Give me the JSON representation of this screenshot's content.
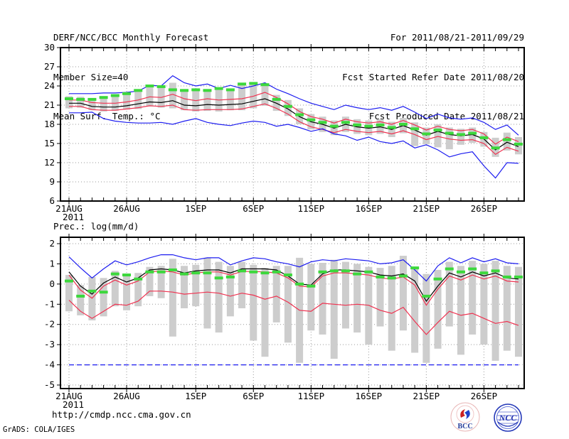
{
  "header": {
    "title": "DERF/NCC/BCC Monthly Forecast",
    "member_size": "Member Size=40",
    "temp_label": "Mean Surf. Temp.: °C",
    "for_range": "For 2011/08/21-2011/09/29",
    "fcst_started": "Fcst Started Refer Date 2011/08/20",
    "fcst_produced": "Fcst Produced Date 2011/08/21"
  },
  "footer": {
    "url": "http://cmdp.ncc.cma.gov.cn",
    "grads_credit": "GrADS: COLA/IGES",
    "logos": [
      {
        "name": "bcc-logo",
        "label": "BCC"
      },
      {
        "name": "ncc-logo",
        "label": "NCC"
      }
    ]
  },
  "colors": {
    "blue": "#1c1cf0",
    "red": "#ef3250",
    "green": "#3cd83c",
    "black": "#000000",
    "bar": "#cdcdcd",
    "grid": "#9a9a9a",
    "frame": "#000000"
  },
  "chart_data": [
    {
      "type": "line",
      "name": "temperature-chart",
      "title": "Mean Surf. Temp.: °C",
      "xlabel": "",
      "ylabel": "°C",
      "n_days": 40,
      "x_start": "21AUG2011",
      "x_end": "29SEP2011",
      "x_tick_labels": [
        "21AUG",
        "26AUG",
        "1SEP",
        "6SEP",
        "11SEP",
        "16SEP",
        "21SEP",
        "26SEP"
      ],
      "x_tick_days": [
        0,
        5,
        11,
        16,
        21,
        26,
        31,
        36
      ],
      "x_sub_label": "2011",
      "ylim": [
        6,
        30
      ],
      "yticks": [
        30,
        27,
        24,
        21,
        18,
        15,
        12,
        9,
        6
      ],
      "grid": "dotted",
      "legend": "none",
      "series": [
        {
          "name": "ensemble-max",
          "color_key": "blue",
          "style": "solid",
          "values": [
            22.8,
            22.8,
            22.8,
            22.9,
            22.9,
            23.0,
            23.2,
            24.1,
            24.0,
            25.6,
            24.5,
            24.0,
            24.3,
            23.6,
            24.1,
            23.6,
            24.0,
            24.5,
            23.5,
            22.8,
            22.0,
            21.3,
            20.8,
            20.3,
            21.0,
            20.6,
            20.3,
            20.6,
            20.2,
            20.8,
            19.9,
            18.9,
            19.6,
            19.0,
            18.8,
            19.0,
            18.3,
            17.2,
            17.9,
            16.3
          ]
        },
        {
          "name": "mean-plus-std",
          "color_key": "red",
          "style": "solid",
          "values": [
            21.8,
            21.8,
            21.4,
            21.3,
            21.3,
            21.5,
            21.8,
            22.3,
            22.2,
            22.7,
            22.0,
            21.7,
            22.0,
            21.8,
            21.9,
            22.0,
            22.4,
            23.0,
            22.2,
            21.2,
            20.0,
            19.2,
            18.8,
            18.2,
            18.8,
            18.4,
            18.2,
            18.4,
            18.0,
            18.6,
            17.9,
            17.1,
            17.7,
            17.2,
            17.0,
            17.2,
            16.5,
            14.9,
            16.0,
            15.3
          ]
        },
        {
          "name": "mean-minus-std",
          "color_key": "red",
          "style": "solid",
          "values": [
            20.8,
            20.8,
            20.3,
            20.2,
            20.2,
            20.4,
            20.6,
            20.9,
            20.8,
            21.0,
            20.3,
            20.2,
            20.3,
            20.3,
            20.3,
            20.4,
            20.8,
            21.2,
            20.5,
            19.6,
            18.4,
            17.6,
            17.2,
            16.7,
            17.2,
            16.9,
            16.7,
            16.9,
            16.5,
            17.0,
            16.4,
            15.6,
            16.1,
            15.7,
            15.5,
            15.6,
            15.0,
            13.3,
            14.4,
            13.8
          ]
        },
        {
          "name": "ensemble-mean",
          "color_key": "black",
          "style": "solid",
          "values": [
            21.3,
            21.3,
            20.8,
            20.7,
            20.7,
            20.9,
            21.2,
            21.5,
            21.4,
            21.7,
            21.0,
            20.9,
            21.1,
            21.0,
            21.1,
            21.2,
            21.6,
            22.0,
            21.3,
            20.4,
            19.2,
            18.4,
            18.0,
            17.4,
            18.0,
            17.6,
            17.4,
            17.6,
            17.2,
            17.8,
            17.1,
            16.3,
            16.9,
            16.4,
            16.2,
            16.4,
            15.7,
            14.0,
            15.2,
            14.5
          ]
        },
        {
          "name": "ensemble-min",
          "color_key": "blue",
          "style": "solid",
          "values": [
            19.8,
            19.8,
            19.9,
            18.9,
            18.5,
            18.3,
            18.2,
            18.2,
            18.3,
            18.0,
            18.5,
            18.9,
            18.3,
            18.0,
            17.8,
            18.2,
            18.5,
            18.3,
            17.7,
            18.0,
            17.5,
            16.9,
            17.3,
            16.5,
            16.2,
            15.5,
            16.0,
            15.3,
            15.0,
            15.4,
            14.3,
            14.8,
            14.0,
            12.9,
            13.4,
            13.7,
            11.5,
            9.6,
            12.0,
            11.9
          ]
        },
        {
          "name": "observation-dash",
          "color_key": "green",
          "style": "thick-dash",
          "values": [
            22.0,
            21.9,
            21.9,
            22.2,
            22.5,
            22.8,
            23.3,
            24.0,
            23.9,
            23.4,
            23.3,
            23.4,
            23.3,
            23.6,
            23.4,
            24.3,
            24.4,
            24.2,
            21.9,
            20.8,
            19.5,
            18.7,
            18.3,
            17.7,
            18.3,
            17.9,
            17.7,
            17.9,
            17.5,
            18.0,
            17.3,
            16.5,
            17.1,
            16.6,
            16.4,
            16.6,
            15.9,
            14.3,
            15.6,
            14.9
          ]
        }
      ],
      "bars": {
        "name": "member-spread-bar",
        "lo": [
          20.5,
          20.6,
          20.2,
          20.0,
          20.1,
          20.3,
          20.4,
          20.8,
          20.6,
          20.5,
          20.2,
          20.0,
          20.1,
          20.0,
          20.2,
          20.2,
          20.5,
          20.9,
          20.1,
          19.3,
          18.0,
          17.2,
          16.8,
          16.3,
          16.8,
          16.5,
          16.3,
          16.5,
          16.0,
          16.6,
          14.6,
          14.9,
          14.4,
          14.1,
          14.8,
          15.1,
          14.5,
          12.9,
          13.9,
          13.3
        ],
        "hi": [
          22.4,
          22.3,
          22.1,
          22.3,
          22.5,
          22.7,
          23.3,
          24.2,
          24.1,
          24.5,
          23.5,
          23.4,
          23.5,
          23.7,
          23.5,
          24.4,
          24.5,
          24.4,
          22.6,
          21.8,
          20.5,
          19.6,
          19.2,
          18.6,
          19.2,
          18.8,
          18.6,
          18.8,
          18.4,
          19.0,
          18.3,
          17.5,
          18.0,
          17.5,
          17.3,
          17.5,
          16.8,
          15.9,
          16.7,
          16.0
        ]
      }
    },
    {
      "type": "line",
      "name": "precipitation-chart",
      "title": "Prec.: log(mm/d)",
      "xlabel": "",
      "ylabel": "log(mm/d)",
      "n_days": 40,
      "x_start": "21AUG2011",
      "x_end": "29SEP2011",
      "x_tick_labels": [
        "21AUG",
        "26AUG",
        "1SEP",
        "6SEP",
        "11SEP",
        "16SEP",
        "21SEP",
        "26SEP"
      ],
      "x_tick_days": [
        0,
        5,
        11,
        16,
        21,
        26,
        31,
        36
      ],
      "x_sub_label": "2011",
      "ylim": [
        -5,
        2
      ],
      "yticks": [
        2,
        1,
        0,
        -1,
        -2,
        -3,
        -4,
        -5
      ],
      "grid": "dotted",
      "legend": "none",
      "series": [
        {
          "name": "ensemble-max",
          "color_key": "blue",
          "style": "solid",
          "values": [
            1.35,
            0.8,
            0.3,
            0.75,
            1.15,
            0.95,
            1.1,
            1.3,
            1.45,
            1.45,
            1.3,
            1.2,
            1.3,
            1.3,
            0.95,
            1.15,
            1.3,
            1.25,
            1.1,
            1.0,
            0.85,
            1.1,
            1.2,
            1.15,
            1.25,
            1.2,
            1.15,
            1.0,
            1.05,
            1.2,
            0.7,
            0.15,
            0.9,
            1.3,
            1.05,
            1.3,
            1.1,
            1.25,
            1.05,
            1.0
          ]
        },
        {
          "name": "mean-plus-std",
          "color_key": "red",
          "style": "solid",
          "values": [
            0.45,
            -0.3,
            -0.7,
            -0.1,
            0.2,
            -0.05,
            0.15,
            0.6,
            0.65,
            0.6,
            0.45,
            0.55,
            0.6,
            0.6,
            0.45,
            0.62,
            0.62,
            0.6,
            0.55,
            0.3,
            -0.1,
            -0.15,
            0.4,
            0.55,
            0.55,
            0.5,
            0.45,
            0.3,
            0.25,
            0.35,
            -0.05,
            -1.05,
            -0.25,
            0.4,
            0.2,
            0.45,
            0.25,
            0.4,
            0.15,
            0.1
          ]
        },
        {
          "name": "mean-minus-std",
          "color_key": "red",
          "style": "solid",
          "values": [
            -0.8,
            -1.35,
            -1.7,
            -1.35,
            -1.0,
            -1.05,
            -0.85,
            -0.35,
            -0.35,
            -0.4,
            -0.5,
            -0.45,
            -0.4,
            -0.45,
            -0.6,
            -0.45,
            -0.55,
            -0.75,
            -0.6,
            -0.9,
            -1.3,
            -1.35,
            -0.95,
            -1.0,
            -1.05,
            -1.0,
            -1.05,
            -1.3,
            -1.45,
            -1.15,
            -1.85,
            -2.5,
            -1.9,
            -1.35,
            -1.55,
            -1.45,
            -1.7,
            -1.95,
            -1.85,
            -2.05
          ]
        },
        {
          "name": "ensemble-mean",
          "color_key": "black",
          "style": "solid",
          "values": [
            0.6,
            -0.1,
            -0.5,
            0.05,
            0.35,
            0.1,
            0.3,
            0.7,
            0.75,
            0.7,
            0.55,
            0.65,
            0.7,
            0.7,
            0.55,
            0.75,
            0.75,
            0.75,
            0.7,
            0.4,
            0.0,
            -0.05,
            0.5,
            0.7,
            0.7,
            0.65,
            0.6,
            0.45,
            0.4,
            0.5,
            0.15,
            -0.85,
            -0.1,
            0.55,
            0.35,
            0.6,
            0.4,
            0.55,
            0.3,
            0.25
          ]
        },
        {
          "name": "ensemble-min",
          "color_key": "blue",
          "style": "dashed",
          "values": [
            -4.0,
            -4.0,
            -4.0,
            -4.0,
            -4.0,
            -4.0,
            -4.0,
            -4.0,
            -4.0,
            -4.0,
            -4.0,
            -4.0,
            -4.0,
            -4.0,
            -4.0,
            -4.0,
            -4.0,
            -4.0,
            -4.0,
            -4.0,
            -4.0,
            -4.0,
            -4.0,
            -4.0,
            -4.0,
            -4.0,
            -4.0,
            -4.0,
            -4.0,
            -4.0,
            -4.0,
            -4.0,
            -4.0,
            -4.0,
            -4.0,
            -4.0,
            -4.0,
            -4.0,
            -4.0,
            -4.0
          ]
        },
        {
          "name": "observation-dash",
          "color_key": "green",
          "style": "thick-dash",
          "values": [
            0.15,
            -0.6,
            -0.35,
            -0.4,
            0.5,
            0.45,
            0.25,
            0.6,
            0.6,
            0.7,
            0.5,
            0.55,
            0.55,
            0.3,
            0.35,
            0.65,
            0.6,
            0.55,
            0.6,
            0.45,
            0.0,
            -0.1,
            0.6,
            0.65,
            0.65,
            0.5,
            0.6,
            0.35,
            0.3,
            0.4,
            0.8,
            -0.6,
            0.25,
            0.75,
            0.6,
            0.75,
            0.55,
            0.65,
            0.35,
            0.35
          ]
        }
      ],
      "bars": {
        "name": "member-spread-bar",
        "lo": [
          -1.35,
          -1.55,
          -1.8,
          -1.6,
          -1.1,
          -1.3,
          -1.1,
          -0.6,
          -0.7,
          -2.6,
          -1.2,
          -1.1,
          -2.2,
          -2.4,
          -1.6,
          -1.2,
          -2.8,
          -3.6,
          -1.9,
          -2.9,
          -3.9,
          -2.3,
          -2.5,
          -3.7,
          -2.2,
          -2.4,
          -3.0,
          -2.1,
          -3.3,
          -2.3,
          -3.4,
          -3.9,
          -3.2,
          -2.1,
          -3.5,
          -2.5,
          -3.0,
          -3.8,
          -3.3,
          -3.6
        ],
        "hi": [
          0.45,
          -0.05,
          0.35,
          0.3,
          0.65,
          0.5,
          0.55,
          0.85,
          0.9,
          1.25,
          0.9,
          0.95,
          1.3,
          1.1,
          0.9,
          1.1,
          0.95,
          0.8,
          0.9,
          0.9,
          1.3,
          1.0,
          1.05,
          1.2,
          1.1,
          1.0,
          0.85,
          0.8,
          0.9,
          1.4,
          0.8,
          0.5,
          0.7,
          1.1,
          0.9,
          1.15,
          1.0,
          1.15,
          0.9,
          0.85
        ]
      }
    }
  ]
}
